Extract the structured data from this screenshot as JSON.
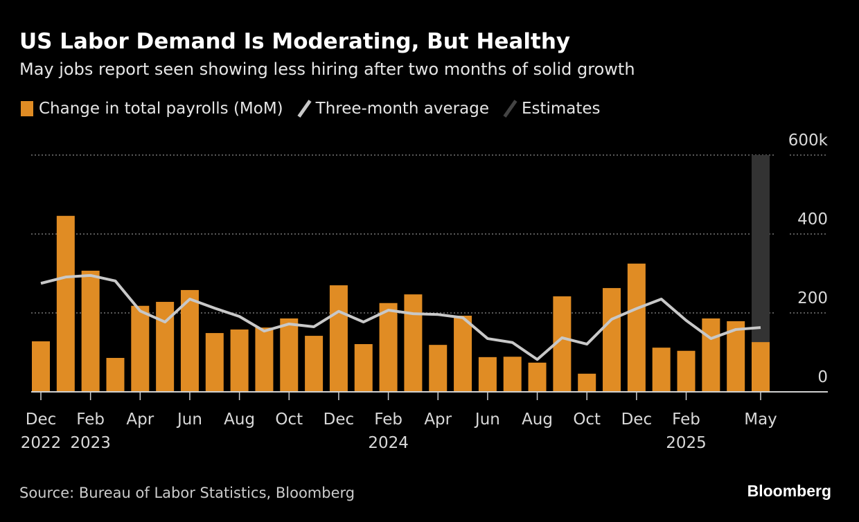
{
  "title": "US Labor Demand Is Moderating, But Healthy",
  "subtitle": "May jobs report seen showing less hiring after two months of solid growth",
  "source": "Source: Bureau of Labor Statistics, Bloomberg",
  "logo": "Bloomberg",
  "colors": {
    "bar": "#e08c24",
    "line": "#c8c8c8",
    "estimate": "#333333",
    "grid": "#777777"
  },
  "chart_data": {
    "type": "bar",
    "title": "US Labor Demand Is Moderating, But Healthy",
    "legend": [
      "Change in total payrolls (MoM)",
      "Three-month average",
      "Estimates"
    ],
    "legend_position": "top-left",
    "ylim": [
      0,
      600
    ],
    "yticks": [
      "0",
      "200",
      "400",
      "600k"
    ],
    "ytick_values": [
      0,
      200,
      400,
      600
    ],
    "xtick_labels": [
      {
        "i": 0,
        "l1": "Dec",
        "l2": "2022"
      },
      {
        "i": 2,
        "l1": "Feb",
        "l2": "2023"
      },
      {
        "i": 4,
        "l1": "Apr",
        "l2": ""
      },
      {
        "i": 6,
        "l1": "Jun",
        "l2": ""
      },
      {
        "i": 8,
        "l1": "Aug",
        "l2": ""
      },
      {
        "i": 10,
        "l1": "Oct",
        "l2": ""
      },
      {
        "i": 12,
        "l1": "Dec",
        "l2": ""
      },
      {
        "i": 14,
        "l1": "Feb",
        "l2": "2024"
      },
      {
        "i": 16,
        "l1": "Apr",
        "l2": ""
      },
      {
        "i": 18,
        "l1": "Jun",
        "l2": ""
      },
      {
        "i": 20,
        "l1": "Aug",
        "l2": ""
      },
      {
        "i": 22,
        "l1": "Oct",
        "l2": ""
      },
      {
        "i": 24,
        "l1": "Dec",
        "l2": ""
      },
      {
        "i": 26,
        "l1": "Feb",
        "l2": "2025"
      },
      {
        "i": 29,
        "l1": "May",
        "l2": ""
      }
    ],
    "categories": [
      "2022-12",
      "2023-01",
      "2023-02",
      "2023-03",
      "2023-04",
      "2023-05",
      "2023-06",
      "2023-07",
      "2023-08",
      "2023-09",
      "2023-10",
      "2023-11",
      "2023-12",
      "2024-01",
      "2024-02",
      "2024-03",
      "2024-04",
      "2024-05",
      "2024-06",
      "2024-07",
      "2024-08",
      "2024-09",
      "2024-10",
      "2024-11",
      "2024-12",
      "2025-01",
      "2025-02",
      "2025-03",
      "2025-04",
      "2025-05"
    ],
    "series": [
      {
        "name": "Change in total payrolls (MoM)",
        "type": "bar",
        "values": [
          128,
          446,
          307,
          86,
          218,
          228,
          258,
          149,
          158,
          163,
          186,
          142,
          270,
          121,
          225,
          247,
          119,
          193,
          88,
          89,
          74,
          242,
          46,
          263,
          325,
          112,
          104,
          186,
          179,
          126
        ]
      },
      {
        "name": "Three-month average",
        "type": "line",
        "values": [
          275,
          291,
          295,
          281,
          205,
          177,
          235,
          212,
          191,
          154,
          172,
          165,
          204,
          177,
          207,
          198,
          196,
          188,
          135,
          125,
          82,
          137,
          121,
          184,
          211,
          235,
          181,
          135,
          158,
          163
        ]
      },
      {
        "name": "Estimates",
        "type": "band",
        "index": 29,
        "range": [
          0,
          600
        ]
      }
    ]
  }
}
